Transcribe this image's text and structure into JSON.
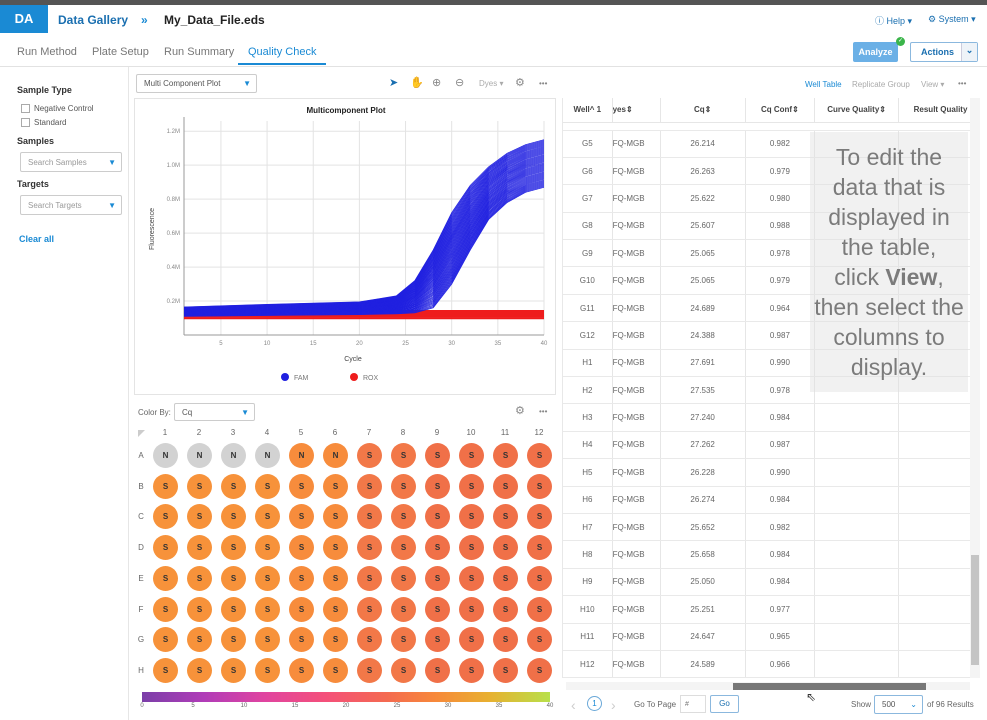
{
  "header": {
    "logo": "DA",
    "gallery": "Data Gallery",
    "sep": "»",
    "file": "My_Data_File.eds",
    "help": "Help ▾",
    "system": "System ▾"
  },
  "tabs": [
    {
      "label": "Run Method"
    },
    {
      "label": "Plate Setup"
    },
    {
      "label": "Run Summary"
    },
    {
      "label": "Quality Check",
      "active": true
    }
  ],
  "actions": {
    "analyze": "Analyze",
    "actions": "Actions",
    "chevron": "⌄"
  },
  "sidebar": {
    "sample_type": "Sample Type",
    "options": [
      "Negative Control",
      "Standard"
    ],
    "samples": "Samples",
    "samples_placeholder": "Search Samples",
    "targets": "Targets",
    "targets_placeholder": "Search Targets",
    "clear": "Clear all"
  },
  "plot_toolbar": {
    "plot_select": "Multi Component Plot",
    "dyes": "Dyes ▾",
    "more": "•••"
  },
  "chart_data": {
    "type": "line",
    "title": "Multicomponent Plot",
    "xlabel": "Cycle",
    "ylabel": "Fluorescence",
    "xlim": [
      1,
      40
    ],
    "ylim": [
      0,
      1260000
    ],
    "xticks": [
      "5",
      "10",
      "15",
      "20",
      "25",
      "30",
      "35",
      "40"
    ],
    "xtick_values": [
      5,
      10,
      15,
      20,
      25,
      30,
      35,
      40
    ],
    "yticks": [
      "0.2M",
      "0.4M",
      "0.6M",
      "0.8M",
      "1.0M",
      "1.2M"
    ],
    "ytick_values": [
      200000,
      400000,
      600000,
      800000,
      1000000,
      1200000
    ],
    "grid": true,
    "x": [
      1,
      10,
      20,
      24,
      26,
      28,
      30,
      32,
      34,
      36,
      38,
      40
    ],
    "series": [
      {
        "name": "FAM",
        "color": "#2020e0",
        "curves": 48,
        "envelope_upper": [
          165000,
          180000,
          195000,
          230000,
          320000,
          500000,
          720000,
          880000,
          990000,
          1070000,
          1120000,
          1150000
        ],
        "envelope_lower": [
          110000,
          115000,
          120000,
          125000,
          130000,
          160000,
          300000,
          500000,
          680000,
          780000,
          840000,
          870000
        ]
      },
      {
        "name": "ROX",
        "color": "#ee1c1c",
        "curves": 20,
        "envelope_upper": [
          145000,
          145000,
          145000,
          145000,
          145000,
          145000,
          145000,
          145000,
          145000,
          145000,
          145000,
          145000
        ],
        "envelope_lower": [
          95000,
          95000,
          95000,
          95000,
          95000,
          95000,
          95000,
          95000,
          95000,
          95000,
          95000,
          95000
        ]
      }
    ],
    "legend": "bottom"
  },
  "colorby": {
    "label": "Color By:",
    "value": "Cq"
  },
  "plate": {
    "columns": [
      "1",
      "2",
      "3",
      "4",
      "5",
      "6",
      "7",
      "8",
      "9",
      "10",
      "11",
      "12"
    ],
    "rows": [
      "A",
      "B",
      "C",
      "D",
      "E",
      "F",
      "G",
      "H"
    ],
    "negative_wells": [
      "A1",
      "A2",
      "A3",
      "A4",
      "A5",
      "A6"
    ],
    "grey_wells": [
      "A1",
      "A2",
      "A3",
      "A4"
    ],
    "grey_color": "#d2d2d2",
    "column_colors": [
      "#f7923a",
      "#f7923a",
      "#f7923a",
      "#f7923a",
      "#f78c3c",
      "#f78c3c",
      "#f27848",
      "#f27848",
      "#f07048",
      "#f07048",
      "#f07048",
      "#f07048"
    ],
    "scale_ticks": [
      "0",
      "5",
      "10",
      "15",
      "20",
      "25",
      "30",
      "35",
      "40"
    ]
  },
  "table_toolbar": {
    "well_table": "Well Table",
    "replicate_group": "Replicate Group",
    "view": "View ▾",
    "more": "•••"
  },
  "table": {
    "columns": [
      "Well^ 1",
      "yes⇕",
      "Cq⇕",
      "Cq Conf⇕",
      "Curve Quality⇕",
      "Result Quality"
    ],
    "rows": [
      [
        "G5",
        "FQ-MGB",
        "26.214",
        "0.982"
      ],
      [
        "G6",
        "FQ-MGB",
        "26.263",
        "0.979"
      ],
      [
        "G7",
        "FQ-MGB",
        "25.622",
        "0.980"
      ],
      [
        "G8",
        "FQ-MGB",
        "25.607",
        "0.988"
      ],
      [
        "G9",
        "FQ-MGB",
        "25.065",
        "0.978"
      ],
      [
        "G10",
        "FQ-MGB",
        "25.065",
        "0.979"
      ],
      [
        "G11",
        "FQ-MGB",
        "24.689",
        "0.964"
      ],
      [
        "G12",
        "FQ-MGB",
        "24.388",
        "0.987"
      ],
      [
        "H1",
        "FQ-MGB",
        "27.691",
        "0.990"
      ],
      [
        "H2",
        "FQ-MGB",
        "27.535",
        "0.978"
      ],
      [
        "H3",
        "FQ-MGB",
        "27.240",
        "0.984"
      ],
      [
        "H4",
        "FQ-MGB",
        "27.262",
        "0.987"
      ],
      [
        "H5",
        "FQ-MGB",
        "26.228",
        "0.990"
      ],
      [
        "H6",
        "FQ-MGB",
        "26.274",
        "0.984"
      ],
      [
        "H7",
        "FQ-MGB",
        "25.652",
        "0.982"
      ],
      [
        "H8",
        "FQ-MGB",
        "25.658",
        "0.984"
      ],
      [
        "H9",
        "FQ-MGB",
        "25.050",
        "0.984"
      ],
      [
        "H10",
        "FQ-MGB",
        "25.251",
        "0.977"
      ],
      [
        "H11",
        "FQ-MGB",
        "24.647",
        "0.965"
      ],
      [
        "H12",
        "FQ-MGB",
        "24.589",
        "0.966"
      ]
    ]
  },
  "pagination": {
    "prev": "‹",
    "page": "1",
    "next": "›",
    "goto": "Go To Page",
    "placeholder": "#",
    "go": "Go",
    "show": "Show",
    "per_page": "500",
    "results": "of 96 Results"
  },
  "overlay": {
    "line1": "To edit the data that is displayed in the table,",
    "line2a": "click ",
    "line2b": "View",
    "line2c": ", then select the columns to display."
  }
}
